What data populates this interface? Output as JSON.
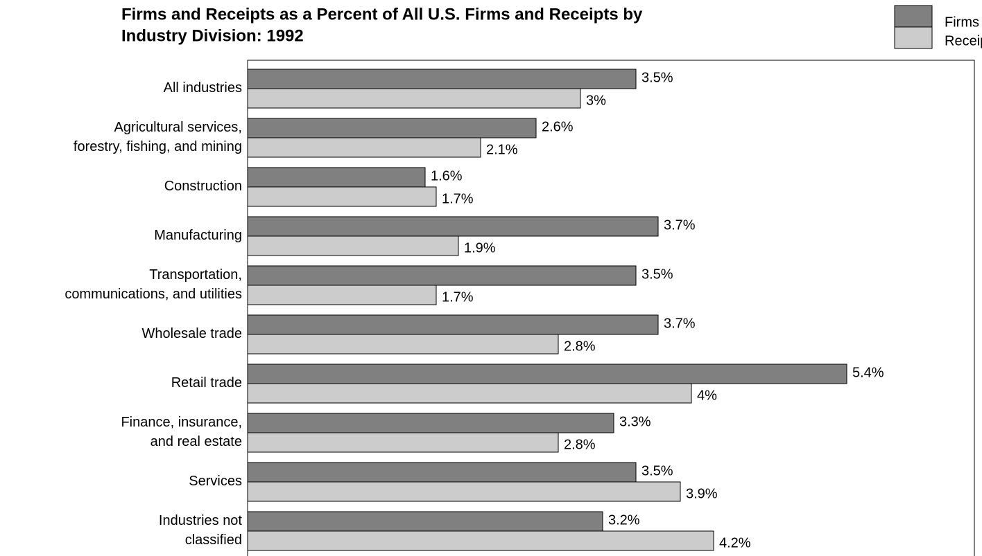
{
  "chart_data": {
    "type": "bar",
    "orientation": "horizontal",
    "title": [
      "Firms and Receipts as a Percent of All U.S. Firms and Receipts by",
      "Industry Division:  1992"
    ],
    "categories": [
      "All industries",
      "Agricultural services,\nforestry, fishing, and mining",
      "Construction",
      "Manufacturing",
      "Transportation,\ncommunications, and utilities",
      "Wholesale trade",
      "Retail trade",
      "Finance, insurance,\nand real estate",
      "Services",
      "Industries not\nclassified"
    ],
    "series": [
      {
        "name": "Firms",
        "color": "#808080",
        "values": [
          3.5,
          2.6,
          1.6,
          3.7,
          3.5,
          3.7,
          5.4,
          3.3,
          3.5,
          3.2
        ],
        "value_labels": [
          "3.5%",
          "2.6%",
          "1.6%",
          "3.7%",
          "3.5%",
          "3.7%",
          "5.4%",
          "3.3%",
          "3.5%",
          "3.2%"
        ]
      },
      {
        "name": "Receipts",
        "color": "#cccccc",
        "values": [
          3,
          2.1,
          1.7,
          1.9,
          1.7,
          2.8,
          4,
          2.8,
          3.9,
          4.2
        ],
        "value_labels": [
          "3%",
          "2.1%",
          "1.7%",
          "1.9%",
          "1.7%",
          "2.8%",
          "4%",
          "2.8%",
          "3.9%",
          "4.2%"
        ]
      }
    ],
    "xlim": [
      0,
      6.55
    ],
    "legend": "top-right"
  }
}
